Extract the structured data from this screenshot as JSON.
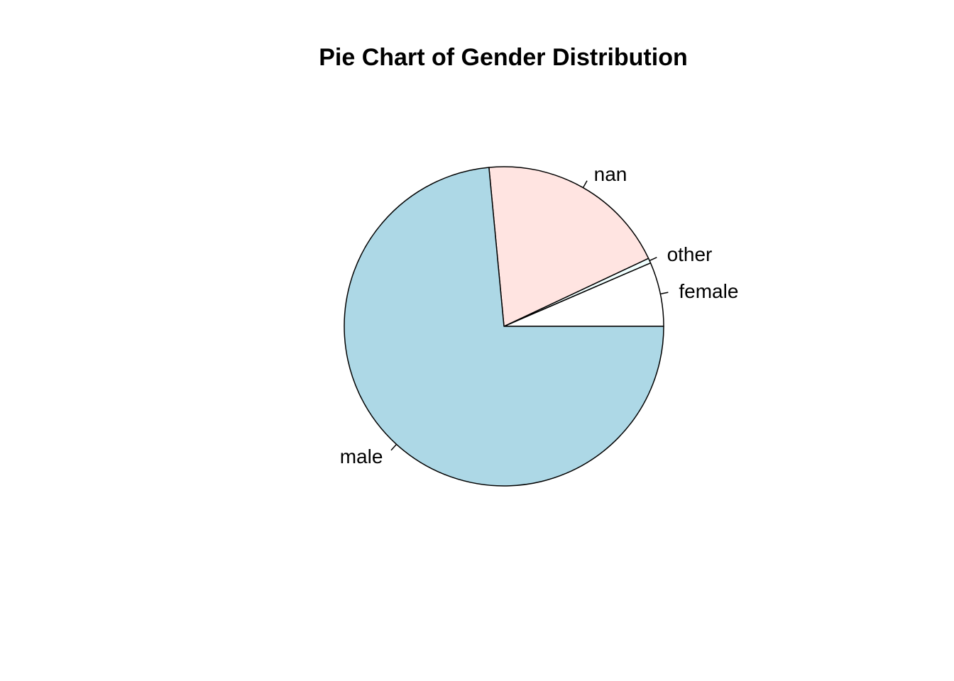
{
  "chart_data": {
    "type": "pie",
    "title": "Pie Chart of Gender Distribution",
    "labels": [
      "female",
      "other",
      "nan",
      "male"
    ],
    "values": [
      6.5,
      0.5,
      19.5,
      73.5
    ],
    "colors": [
      "#ffffff",
      "#f0ffff",
      "#ffe4e1",
      "#add8e6"
    ],
    "start": "3 o'clock",
    "direction": "counterclockwise",
    "border_color": "#000000"
  }
}
